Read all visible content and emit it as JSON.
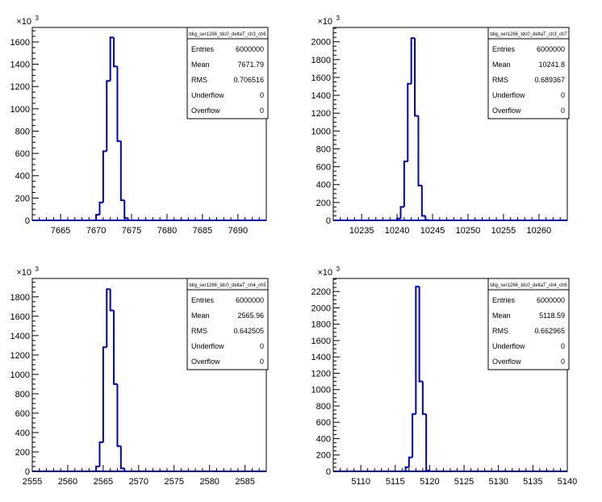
{
  "chart_data": [
    {
      "type": "bar",
      "title": "tdig_ser1266_tdc0_deltaT_ch3_ch6",
      "y_multiplier_label": "×10",
      "y_multiplier_exp": "3",
      "xlim": [
        7661,
        7694
      ],
      "ylim": [
        0,
        1730
      ],
      "x_ticks": [
        7665,
        7670,
        7675,
        7680,
        7685,
        7690
      ],
      "y_ticks": [
        0,
        200,
        400,
        600,
        800,
        1000,
        1200,
        1400,
        1600
      ],
      "bin_width": 0.5,
      "bins": [
        {
          "x": 7670.0,
          "y": 50
        },
        {
          "x": 7670.5,
          "y": 160
        },
        {
          "x": 7671.0,
          "y": 620
        },
        {
          "x": 7671.5,
          "y": 1250
        },
        {
          "x": 7672.0,
          "y": 1640
        },
        {
          "x": 7672.5,
          "y": 1380
        },
        {
          "x": 7673.0,
          "y": 710
        },
        {
          "x": 7673.5,
          "y": 180
        },
        {
          "x": 7674.0,
          "y": 20
        }
      ],
      "stats": [
        {
          "label": "Entries",
          "value": "6000000"
        },
        {
          "label": "Mean",
          "value": "7671.79"
        },
        {
          "label": "RMS",
          "value": "0.706516"
        },
        {
          "label": "Underflow",
          "value": "0"
        },
        {
          "label": "Overflow",
          "value": "0"
        }
      ]
    },
    {
      "type": "bar",
      "title": "tdig_ser1266_tdc0_deltaT_ch3_ch7",
      "y_multiplier_label": "×10",
      "y_multiplier_exp": "3",
      "xlim": [
        10231,
        10264
      ],
      "ylim": [
        0,
        2160
      ],
      "x_ticks": [
        10235,
        10240,
        10245,
        10250,
        10255,
        10260
      ],
      "y_ticks": [
        0,
        200,
        400,
        600,
        800,
        1000,
        1200,
        1400,
        1600,
        1800,
        2000
      ],
      "bin_width": 0.5,
      "bins": [
        {
          "x": 10240.0,
          "y": 20
        },
        {
          "x": 10240.5,
          "y": 150
        },
        {
          "x": 10241.0,
          "y": 660
        },
        {
          "x": 10241.5,
          "y": 1530
        },
        {
          "x": 10242.0,
          "y": 2040
        },
        {
          "x": 10242.5,
          "y": 1170
        },
        {
          "x": 10243.0,
          "y": 390
        },
        {
          "x": 10243.5,
          "y": 50
        },
        {
          "x": 10244.0,
          "y": 5
        }
      ],
      "stats": [
        {
          "label": "Entries",
          "value": "6000000"
        },
        {
          "label": "Mean",
          "value": "10241.8"
        },
        {
          "label": "RMS",
          "value": "0.689367"
        },
        {
          "label": "Underflow",
          "value": "0"
        },
        {
          "label": "Overflow",
          "value": "0"
        }
      ]
    },
    {
      "type": "bar",
      "title": "tdig_ser1266_tdc0_deltaT_ch4_ch5",
      "y_multiplier_label": "×10",
      "y_multiplier_exp": "3",
      "xlim": [
        2555,
        2588
      ],
      "ylim": [
        0,
        1990
      ],
      "x_ticks": [
        2555,
        2560,
        2565,
        2570,
        2575,
        2580,
        2585
      ],
      "y_ticks": [
        0,
        200,
        400,
        600,
        800,
        1000,
        1200,
        1400,
        1600,
        1800
      ],
      "bin_width": 0.5,
      "bins": [
        {
          "x": 2564.0,
          "y": 50
        },
        {
          "x": 2564.5,
          "y": 300
        },
        {
          "x": 2565.0,
          "y": 1280
        },
        {
          "x": 2565.5,
          "y": 1880
        },
        {
          "x": 2566.0,
          "y": 1660
        },
        {
          "x": 2566.5,
          "y": 900
        },
        {
          "x": 2567.0,
          "y": 260
        },
        {
          "x": 2567.5,
          "y": 30
        }
      ],
      "stats": [
        {
          "label": "Entries",
          "value": "6000000"
        },
        {
          "label": "Mean",
          "value": "2565.96"
        },
        {
          "label": "RMS",
          "value": "0.642505"
        },
        {
          "label": "Underflow",
          "value": "0"
        },
        {
          "label": "Overflow",
          "value": "0"
        }
      ]
    },
    {
      "type": "bar",
      "title": "tdig_ser1266_tdc0_deltaT_ch4_ch6",
      "y_multiplier_label": "×10",
      "y_multiplier_exp": "3",
      "xlim": [
        5106,
        5140
      ],
      "ylim": [
        0,
        2360
      ],
      "x_ticks": [
        5110,
        5115,
        5120,
        5125,
        5130,
        5135,
        5140
      ],
      "y_ticks": [
        0,
        200,
        400,
        600,
        800,
        1000,
        1200,
        1400,
        1600,
        1800,
        2000,
        2200
      ],
      "bin_width": 0.5,
      "bins": [
        {
          "x": 5116.5,
          "y": 50
        },
        {
          "x": 5117.0,
          "y": 170
        },
        {
          "x": 5117.5,
          "y": 700
        },
        {
          "x": 5118.0,
          "y": 2260
        },
        {
          "x": 5118.5,
          "y": 1100
        },
        {
          "x": 5119.0,
          "y": 700
        },
        {
          "x": 5119.5,
          "y": 10
        }
      ],
      "stats": [
        {
          "label": "Entries",
          "value": "6000000"
        },
        {
          "label": "Mean",
          "value": "5118.59"
        },
        {
          "label": "RMS",
          "value": "0.662965"
        },
        {
          "label": "Underflow",
          "value": "0"
        },
        {
          "label": "Overflow",
          "value": "0"
        }
      ]
    }
  ],
  "colors": {
    "histogram_line": "#0000cc",
    "axis": "#000000",
    "background": "#ffffff"
  }
}
